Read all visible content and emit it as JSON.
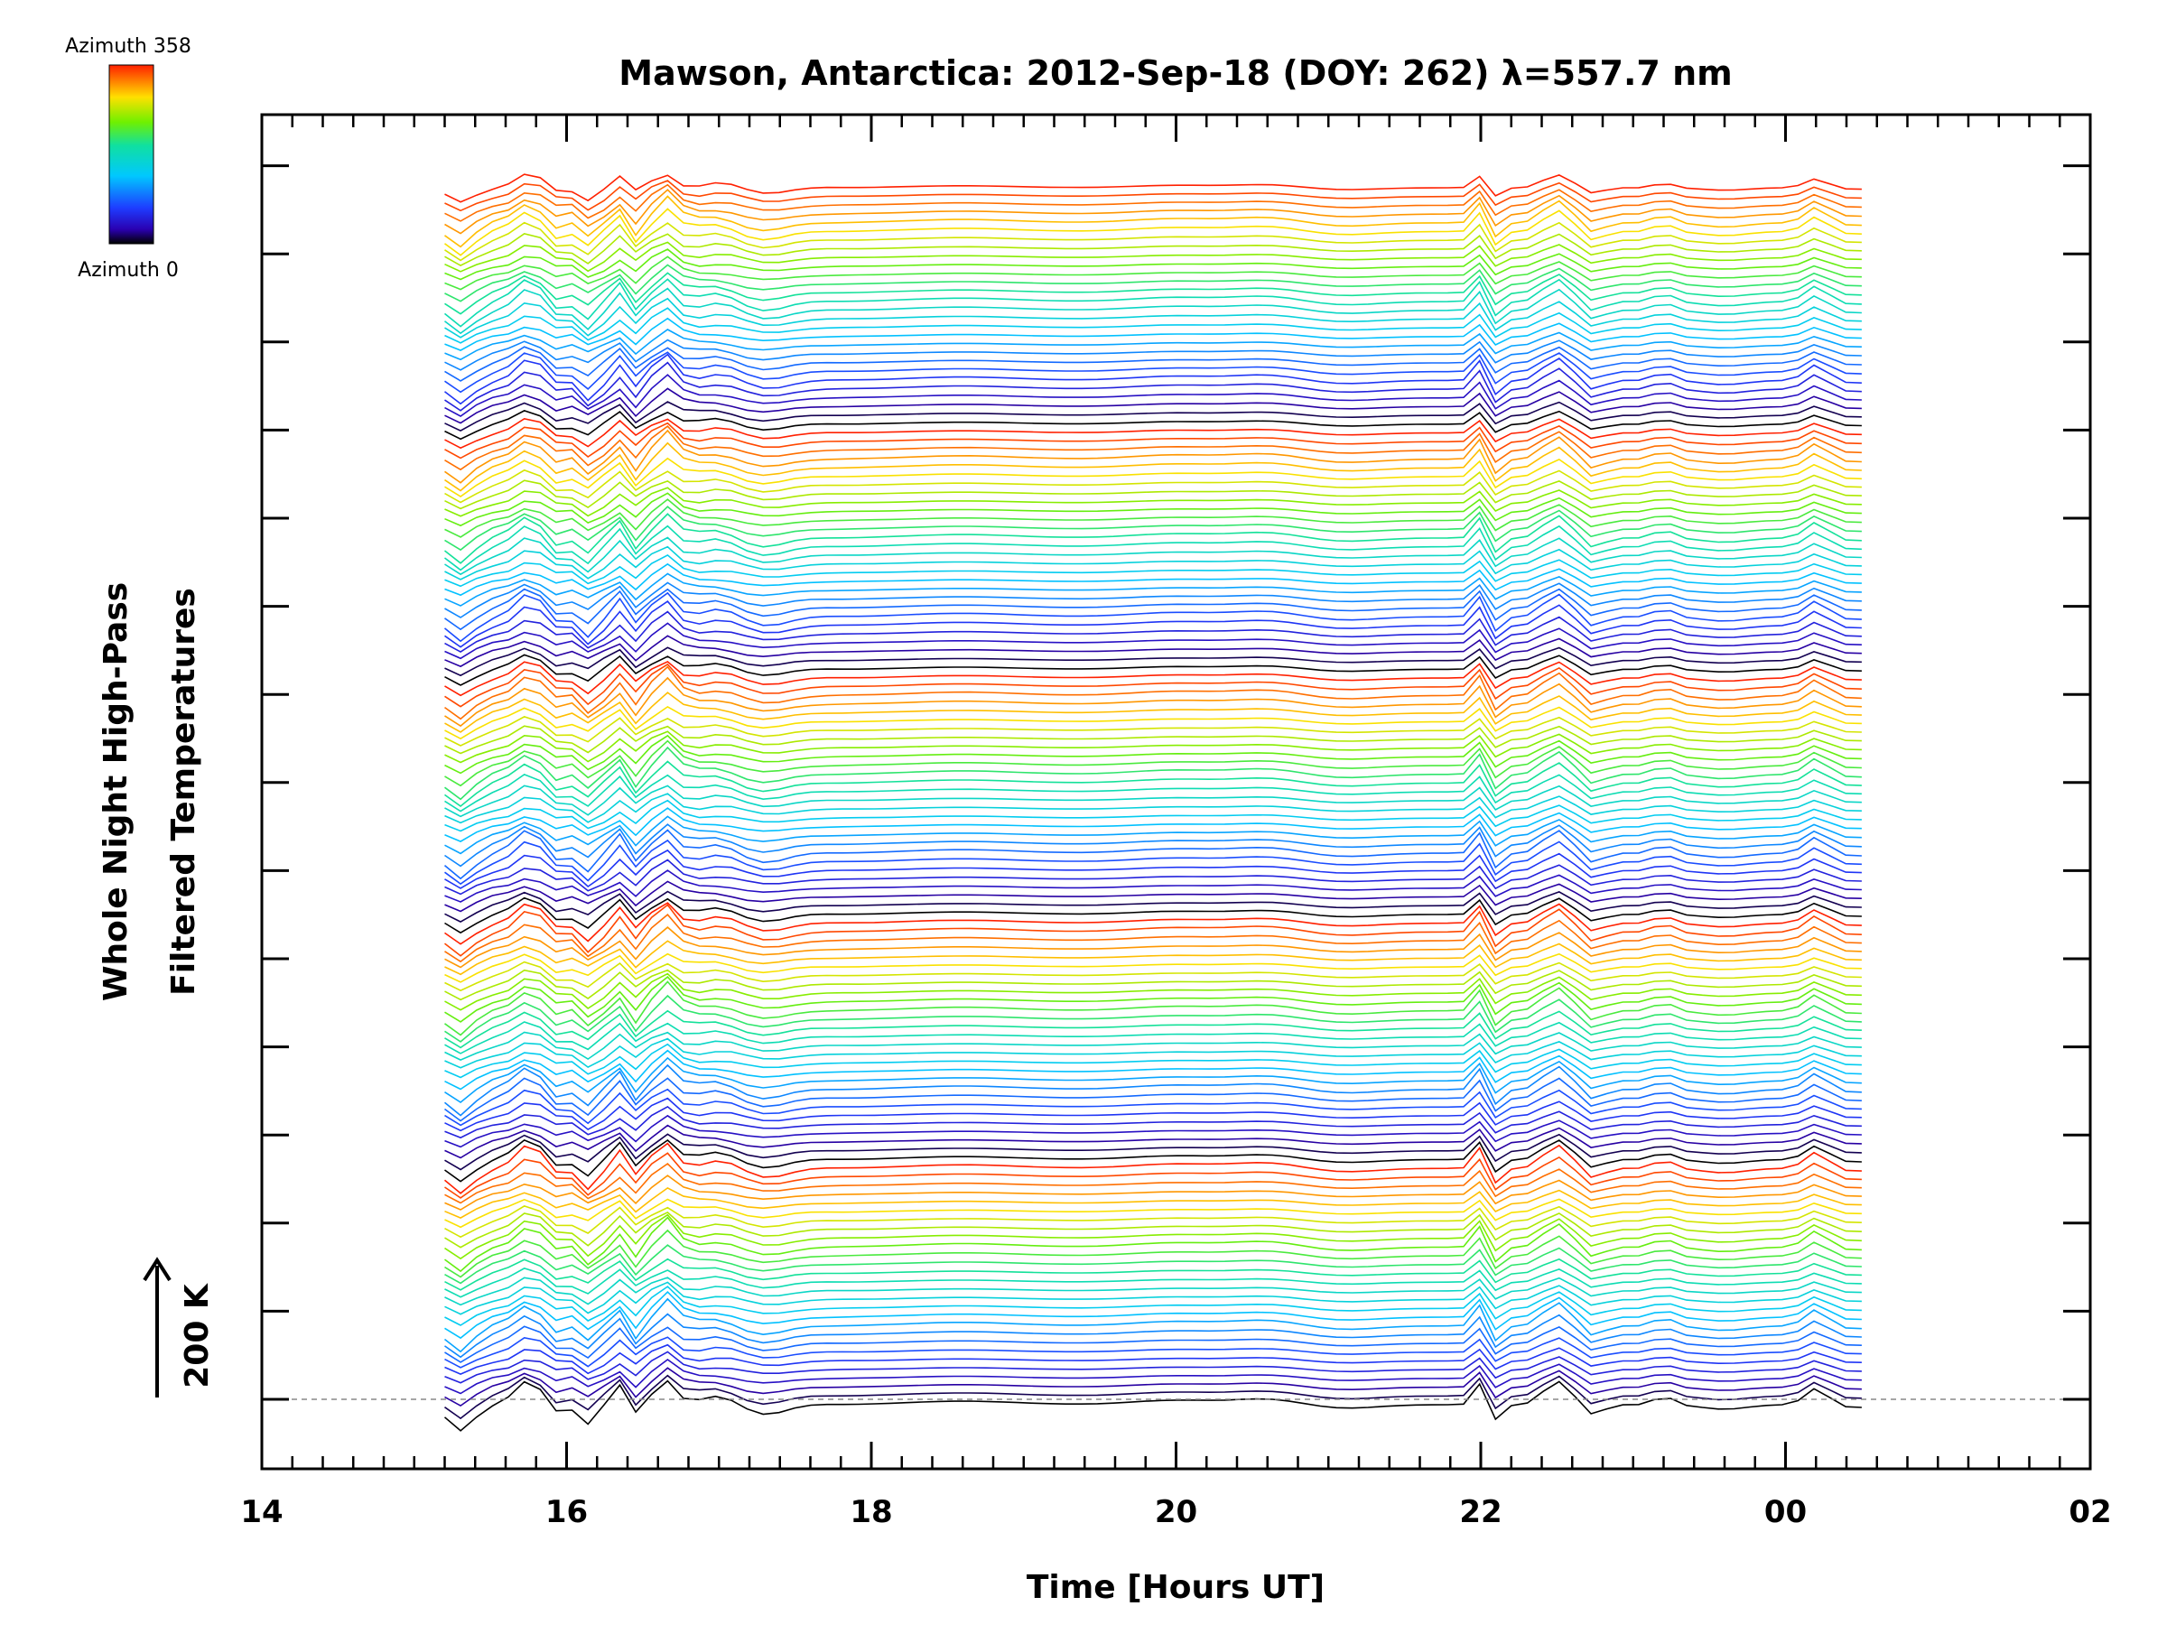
{
  "chart_data": {
    "type": "line",
    "title": "Mawson, Antarctica: 2012-Sep-18 (DOY: 262) λ=557.7 nm",
    "xlabel": "Time [Hours UT]",
    "ylabel": [
      "Whole Night High-Pass",
      "Filtered Temperatures"
    ],
    "x_tick_labels": [
      "14",
      "16",
      "18",
      "20",
      "22",
      "00",
      "02"
    ],
    "xlim_hours_ut": [
      14,
      26
    ],
    "data_x_range_hours_ut": [
      15.2,
      24.5
    ],
    "scale_bar": {
      "label": "200 K",
      "value": 200,
      "unit": "K"
    },
    "colorbar": {
      "min_label": "Azimuth 0",
      "max_label": "Azimuth 358",
      "min": 0,
      "max": 358,
      "colormap": "rainbow"
    },
    "baseline": "dashed",
    "series_count": 140,
    "azimuth_groups": 5,
    "traces_per_group": 28,
    "grid": false,
    "legend": "colorbar top-left"
  }
}
